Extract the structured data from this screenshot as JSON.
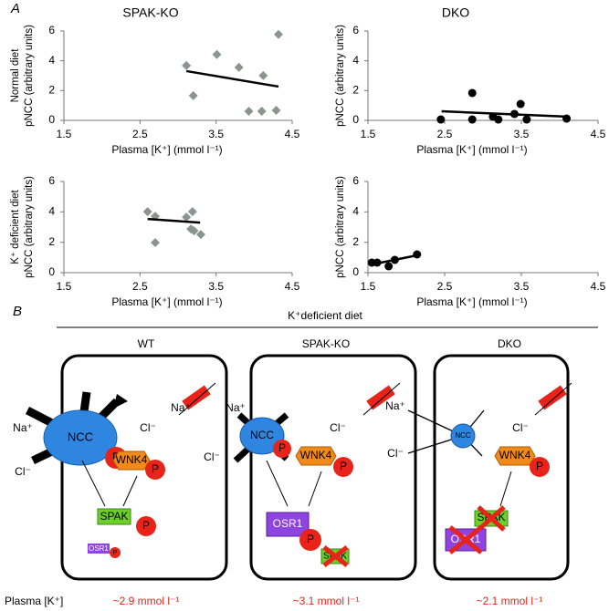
{
  "panel_label": "A",
  "chart_data": [
    {
      "type": "scatter",
      "title": "SPAK-KO",
      "row_label": "Normal diet",
      "ylabel": "pNCC (arbitrary units)",
      "xlabel": "Plasma [K⁺]  (mmol l⁻¹)",
      "marker": "diamond",
      "color": "#8a968c",
      "x": [
        3.11,
        3.2,
        3.51,
        3.8,
        4.12,
        4.1,
        4.32,
        4.29,
        3.93
      ],
      "values": [
        3.68,
        1.66,
        4.42,
        3.56,
        3.01,
        0.61,
        5.77,
        0.67,
        0.61
      ],
      "trendline": {
        "x": [
          3.11,
          4.32
        ],
        "values": [
          3.31,
          2.27
        ]
      },
      "xlim": [
        1.5,
        4.5
      ],
      "ylim": [
        0,
        6
      ],
      "xticks": [
        1.5,
        2.5,
        3.5,
        4.5
      ],
      "yticks": [
        0,
        2,
        4,
        6
      ]
    },
    {
      "type": "scatter",
      "title": "DKO",
      "ylabel": "pNCC (arbitrary units)",
      "xlabel": "Plasma [K⁺]  (mmol l⁻¹)",
      "marker": "circle",
      "color": "#000000",
      "x": [
        2.45,
        2.86,
        2.86,
        3.13,
        3.2,
        3.41,
        3.49,
        3.57,
        4.09
      ],
      "values": [
        0.06,
        1.84,
        0.06,
        0.25,
        0.06,
        0.43,
        1.1,
        0.06,
        0.12
      ],
      "trendline": {
        "x": [
          2.46,
          4.09
        ],
        "values": [
          0.61,
          0.25
        ]
      },
      "xlim": [
        1.5,
        4.5
      ],
      "ylim": [
        0,
        6
      ],
      "xticks": [
        1.5,
        2.5,
        3.5,
        4.5
      ],
      "yticks": [
        0,
        2,
        4,
        6
      ]
    },
    {
      "type": "scatter",
      "row_label": "K⁺ deficient diet",
      "ylabel": "pNCC (arbitrary units)",
      "xlabel": "Plasma [K⁺]  (mmol l⁻¹)",
      "marker": "diamond",
      "color": "#8a968c",
      "x": [
        2.6,
        2.7,
        2.7,
        3.11,
        3.19,
        3.17,
        3.21,
        3.3
      ],
      "values": [
        4.01,
        3.71,
        1.98,
        3.65,
        4.01,
        2.87,
        2.75,
        2.51
      ],
      "trendline": {
        "x": [
          2.6,
          3.29
        ],
        "values": [
          3.53,
          3.29
        ]
      },
      "xlim": [
        1.5,
        4.5
      ],
      "ylim": [
        0,
        6
      ],
      "xticks": [
        1.5,
        2.5,
        3.5,
        4.5
      ],
      "yticks": [
        0,
        2,
        4,
        6
      ]
    },
    {
      "type": "scatter",
      "ylabel": "pNCC (arbitrary units)",
      "xlabel": "Plasma [K⁺]  (mmol l⁻¹)",
      "marker": "circle",
      "color": "#000000",
      "x": [
        1.55,
        1.62,
        1.77,
        1.85,
        2.14
      ],
      "values": [
        0.66,
        0.66,
        0.42,
        0.84,
        1.2
      ],
      "trendline": {
        "x": [
          1.55,
          2.14
        ],
        "values": [
          0.54,
          1.14
        ]
      },
      "xlim": [
        1.5,
        4.5
      ],
      "ylim": [
        0,
        6
      ],
      "xticks": [
        1.5,
        2.5,
        3.5,
        4.5
      ],
      "yticks": [
        0,
        2,
        4,
        6
      ]
    }
  ],
  "diagram": {
    "label": "B",
    "condition": "K⁺deficient diet",
    "plasma_label": "Plasma [K⁺]",
    "columns": [
      {
        "title": "WT",
        "plasma_k": "~2.9 mmol l⁻¹"
      },
      {
        "title": "SPAK-KO",
        "plasma_k": "~3.1 mmol l⁻¹"
      },
      {
        "title": "DKO",
        "plasma_k": "~2.1 mmol l⁻¹"
      }
    ],
    "ions": {
      "na": "Na⁺",
      "cl": "Cl⁻"
    },
    "proteins": {
      "ncc": "NCC",
      "wnk4": "WNK4",
      "spak": "SPAK",
      "osr1": "OSR1",
      "p": "P"
    }
  }
}
